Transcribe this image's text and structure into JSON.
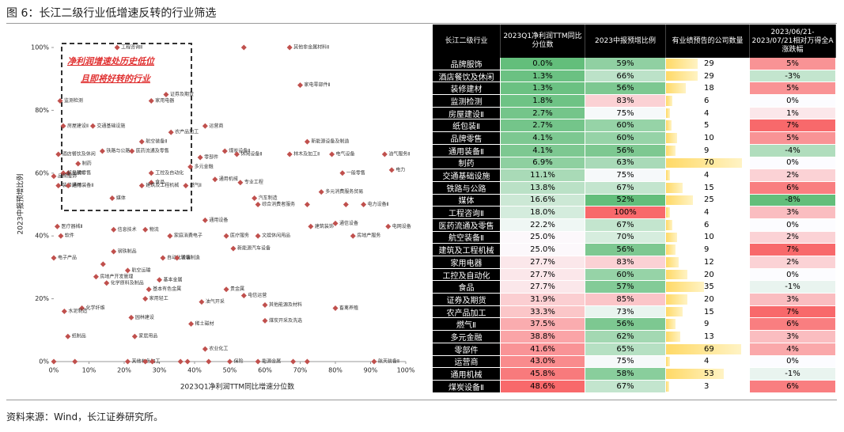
{
  "title": "图 6：长江二级行业低增速反转的行业筛选",
  "source": "资料来源：Wind，长江证券研究所。",
  "chart_data": {
    "type": "scatter",
    "x_label": "2023Q1净利润TTM同比增速分位数",
    "y_label": "2023中报预增比例",
    "annotation": [
      "净利润增速处历史低位",
      "且即将好转的行业"
    ],
    "color": "#c0504d",
    "xlim": [
      0,
      100
    ],
    "ylim": [
      0,
      100
    ],
    "xticks": [
      {
        "value": 0,
        "label": "0%"
      },
      {
        "value": 10,
        "label": "10%"
      },
      {
        "value": 20,
        "label": "20%"
      },
      {
        "value": 30,
        "label": "30%"
      },
      {
        "value": 40,
        "label": "40%"
      },
      {
        "value": 50,
        "label": "50%"
      },
      {
        "value": 60,
        "label": "60%"
      },
      {
        "value": 70,
        "label": "70%"
      },
      {
        "value": 80,
        "label": "80%"
      },
      {
        "value": 90,
        "label": "90%"
      },
      {
        "value": 100,
        "label": "100%"
      }
    ],
    "yticks": [
      {
        "value": 0,
        "label": "0%"
      },
      {
        "value": 20,
        "label": "20%"
      },
      {
        "value": 40,
        "label": "40%"
      },
      {
        "value": 60,
        "label": "60%"
      },
      {
        "value": 80,
        "label": "80%"
      },
      {
        "value": 100,
        "label": "100%"
      }
    ],
    "labels": [
      "工程咨询Ⅱ",
      null,
      "其他非金属材料Ⅱ",
      "家电零部件Ⅱ",
      "证券及期货",
      "家用电器",
      "监测检测",
      "交通基础设施",
      "房屋建设Ⅱ",
      "运营商",
      "农产品加工",
      "航空装备Ⅱ",
      "新能源设备及制造",
      "铁路与公路",
      "医药流通及零售",
      "煤炭设备Ⅱ",
      "酒店餐饮及休闲",
      "休闲设备Ⅱ",
      "林木及加工Ⅱ",
      "电气设备",
      "油气服务Ⅱ",
      "零部件",
      "制药",
      "多元金融",
      "电力",
      "一般零售",
      "品牌零售",
      "纸包装Ⅱ",
      "工控及自动化",
      "品牌服饰",
      "通用机械",
      "专业工程",
      "食品",
      "装修建材",
      "通用装备Ⅱ",
      "燃气Ⅱ",
      "建筑及工程机械",
      "多元消费服务贸易",
      "媒体",
      "汽车制造",
      "综合消费者服务",
      null,
      null,
      "电力设备Ⅱ",
      "通用设备",
      "通信设备",
      "医疗器械Ⅱ",
      "建筑装饰",
      "电网设备",
      "信息技术",
      "物流",
      "家庭消费电子",
      "软件",
      "医疗服务",
      "文娱休闲用品",
      "房地产服务",
      "新能源汽车设备",
      "钢铁制品",
      "电子产品",
      "自动化设备",
      "玻璃制造",
      null,
      "航空运输",
      "房地产开发管理",
      "化学原料及制品",
      "基本金属",
      "基本有色金属",
      "贵金属",
      "电信运营",
      "家用轻工",
      "油气开采",
      "其他能源及材料",
      "畜禽养殖",
      "化学纤维",
      "水泥制造",
      "园林建设",
      "煤炭开采及洗选",
      "稀土磁材",
      "纸制品",
      "家居用品",
      "农业化工",
      null,
      null,
      "其他有色加工",
      null,
      null,
      null,
      null,
      null,
      "保险",
      "能源金属",
      null,
      null,
      "航天装备Ⅱ"
    ],
    "x": [
      18.0,
      54,
      67,
      70,
      31.9,
      27.7,
      1.8,
      11.1,
      2.7,
      43.0,
      33.3,
      25.0,
      72,
      13.8,
      22.2,
      48.6,
      1.3,
      52,
      67,
      79,
      94,
      41.6,
      6.9,
      38.8,
      96,
      82,
      4.1,
      2.7,
      27.7,
      0.0,
      45.8,
      53,
      27.7,
      1.3,
      4.1,
      37.5,
      25.0,
      76,
      16.6,
      57,
      58,
      72,
      83,
      88,
      43,
      80,
      1,
      73,
      95,
      17,
      26,
      33,
      2,
      49,
      58,
      85,
      51,
      17,
      0,
      31,
      35,
      14,
      21,
      12,
      15,
      30,
      27,
      49,
      54,
      26,
      42,
      60,
      80,
      8,
      3,
      22,
      60,
      39,
      4,
      23,
      43,
      0,
      6,
      21,
      26,
      28,
      36,
      38,
      44,
      50,
      58,
      68,
      72,
      91
    ],
    "y": [
      100,
      100,
      100,
      88,
      85,
      83,
      83,
      75,
      75,
      75,
      73,
      70,
      70,
      67,
      67,
      67,
      66,
      66,
      66,
      66,
      66,
      65,
      63,
      62,
      61,
      60,
      60,
      60,
      60,
      59,
      58,
      57,
      57,
      56,
      56,
      56,
      56,
      54,
      52,
      52,
      50,
      50,
      50,
      50,
      45,
      44,
      43,
      43,
      43,
      42,
      42,
      40,
      40,
      40,
      40,
      40,
      36,
      35,
      33,
      33,
      33,
      31,
      29,
      27,
      25,
      26,
      23,
      23,
      21,
      20,
      19,
      18,
      17,
      17,
      16,
      14,
      13,
      12,
      8,
      8,
      4,
      0,
      0,
      0,
      0,
      0,
      0,
      0,
      0,
      0,
      0,
      0,
      0,
      0
    ]
  },
  "table": {
    "headers": [
      "长江二级行业",
      "2023Q1净利润TTM同比分位数",
      "2023中报预增比例",
      "有业绩预告的公司数量",
      "2023/06/21-2023/07/21相对万得全A涨跌幅"
    ],
    "rows": [
      [
        "品牌服饰",
        "0.0%",
        "59%",
        29,
        "5%"
      ],
      [
        "酒店餐饮及休闲",
        "1.3%",
        "66%",
        29,
        "-3%"
      ],
      [
        "装修建材",
        "1.3%",
        "56%",
        18,
        "5%"
      ],
      [
        "监测检测",
        "1.8%",
        "83%",
        6,
        "0%"
      ],
      [
        "房屋建设Ⅱ",
        "2.7%",
        "75%",
        4,
        "1%"
      ],
      [
        "纸包装Ⅱ",
        "2.7%",
        "60%",
        5,
        "7%"
      ],
      [
        "品牌零售",
        "4.1%",
        "60%",
        10,
        "5%"
      ],
      [
        "通用装备Ⅱ",
        "4.1%",
        "56%",
        9,
        "-4%"
      ],
      [
        "制药",
        "6.9%",
        "63%",
        70,
        "0%"
      ],
      [
        "交通基础设施",
        "11.1%",
        "75%",
        4,
        "2%"
      ],
      [
        "铁路与公路",
        "13.8%",
        "67%",
        15,
        "6%"
      ],
      [
        "媒体",
        "16.6%",
        "52%",
        25,
        "-8%"
      ],
      [
        "工程咨询Ⅱ",
        "18.0%",
        "100%",
        4,
        "3%"
      ],
      [
        "医药流通及零售",
        "22.2%",
        "67%",
        6,
        "0%"
      ],
      [
        "航空装备Ⅱ",
        "25.0%",
        "70%",
        10,
        "2%"
      ],
      [
        "建筑及工程机械",
        "25.0%",
        "56%",
        9,
        "7%"
      ],
      [
        "家用电器",
        "27.7%",
        "83%",
        12,
        "2%"
      ],
      [
        "工控及自动化",
        "27.7%",
        "60%",
        20,
        "0%"
      ],
      [
        "食品",
        "27.7%",
        "57%",
        35,
        "-1%"
      ],
      [
        "证券及期货",
        "31.9%",
        "85%",
        20,
        "3%"
      ],
      [
        "农产品加工",
        "33.3%",
        "73%",
        15,
        "7%"
      ],
      [
        "燃气Ⅱ",
        "37.5%",
        "56%",
        9,
        "6%"
      ],
      [
        "多元金融",
        "38.8%",
        "62%",
        13,
        "3%"
      ],
      [
        "零部件",
        "41.6%",
        "65%",
        69,
        "4%"
      ],
      [
        "运营商",
        "43.0%",
        "75%",
        4,
        "0%"
      ],
      [
        "通用机械",
        "45.8%",
        "58%",
        53,
        "-1%"
      ],
      [
        "煤炭设备Ⅱ",
        "48.6%",
        "67%",
        3,
        "6%"
      ]
    ]
  }
}
